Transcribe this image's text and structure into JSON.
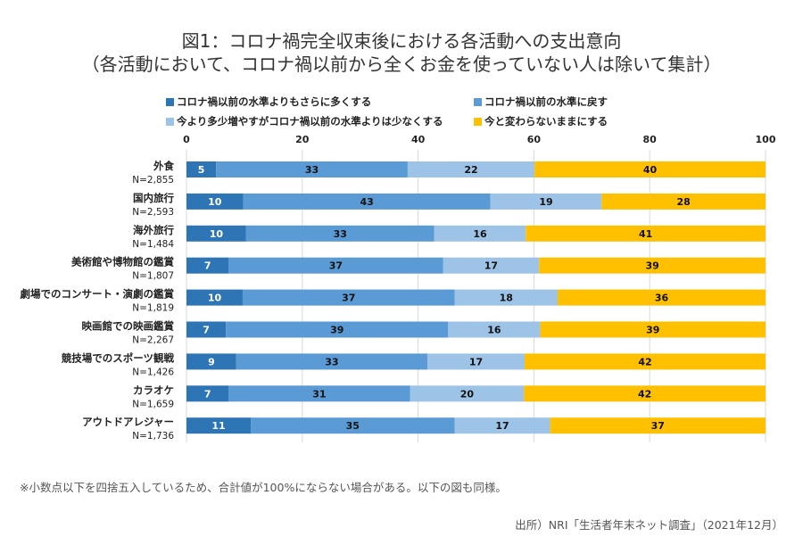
{
  "chart_data": {
    "type": "bar",
    "orientation": "horizontal",
    "stacked": true,
    "title": "図1：コロナ禍完全収束後における各活動への支出意向",
    "subtitle": "（各活動において、コロナ禍以前から全くお金を使っていない人は除いて集計）",
    "xlabel": "",
    "ylabel": "",
    "xlim": [
      0,
      100
    ],
    "x_ticks": [
      0,
      20,
      40,
      60,
      80,
      100
    ],
    "grid": true,
    "legend_position": "top",
    "categories": [
      {
        "label": "外食",
        "n": "N=2,855"
      },
      {
        "label": "国内旅行",
        "n": "N=2,593"
      },
      {
        "label": "海外旅行",
        "n": "N=1,484"
      },
      {
        "label": "美術館や博物館の鑑賞",
        "n": "N=1,807"
      },
      {
        "label": "劇場でのコンサート・演劇の鑑賞",
        "n": "N=1,819"
      },
      {
        "label": "映画館での映画鑑賞",
        "n": "N=2,267"
      },
      {
        "label": "競技場でのスポーツ観戦",
        "n": "N=1,426"
      },
      {
        "label": "カラオケ",
        "n": "N=1,659"
      },
      {
        "label": "アウトドアレジャー",
        "n": "N=1,736"
      }
    ],
    "series": [
      {
        "name": "コロナ禍以前の水準よりもさらに多くする",
        "color": "#2E75B6",
        "label_color": "#ffffff",
        "values": [
          5,
          10,
          10,
          7,
          10,
          7,
          9,
          7,
          11
        ],
        "plot_values": [
          5.1,
          9.8,
          10.3,
          7.3,
          9.7,
          6.8,
          8.6,
          7.3,
          11.1
        ]
      },
      {
        "name": "コロナ禍以前の水準に戻す",
        "color": "#5B9BD5",
        "label_color": "#111111",
        "values": [
          33,
          43,
          33,
          37,
          37,
          39,
          33,
          31,
          35
        ],
        "plot_values": [
          33.1,
          42.7,
          32.5,
          37.0,
          36.6,
          38.4,
          33.0,
          31.3,
          35.2
        ]
      },
      {
        "name": "今より多少増やすがコロナ禍以前の水準よりは少なくする",
        "color": "#9DC3E6",
        "label_color": "#111111",
        "values": [
          22,
          19,
          16,
          17,
          18,
          16,
          17,
          20,
          17
        ],
        "plot_values": [
          21.9,
          19.2,
          15.8,
          16.6,
          17.8,
          15.9,
          16.8,
          19.7,
          16.5
        ]
      },
      {
        "name": "今と変わらないままにする",
        "color": "#FFC000",
        "label_color": "#111111",
        "values": [
          40,
          28,
          41,
          39,
          36,
          39,
          42,
          42,
          37
        ],
        "plot_values": [
          39.9,
          28.3,
          41.4,
          39.1,
          35.9,
          38.9,
          41.6,
          41.7,
          37.2
        ]
      }
    ]
  },
  "footer": {
    "note": "※小数点以下を四捨五入しているため、合計値が100%にならない場合がある。以下の図も同様。",
    "source": "出所）NRI「生活者年末ネット調査」（2021年12月）"
  }
}
